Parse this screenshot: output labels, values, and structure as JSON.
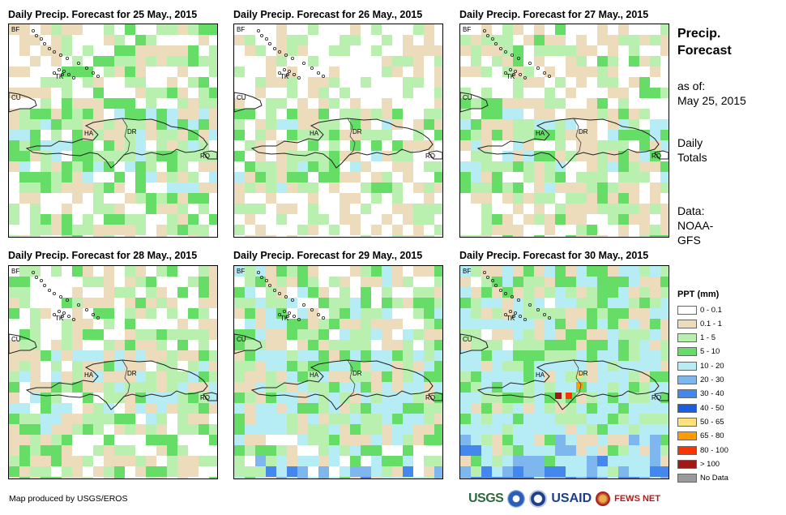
{
  "panels": [
    {
      "title": "Daily Precip. Forecast for 25 May., 2015",
      "seed": 25,
      "bias": 0.0,
      "south_wet": 0.0
    },
    {
      "title": "Daily Precip. Forecast for 26 May., 2015",
      "seed": 26,
      "bias": -0.15,
      "south_wet": 0.0
    },
    {
      "title": "Daily Precip. Forecast for 27 May., 2015",
      "seed": 27,
      "bias": -0.05,
      "south_wet": 0.1
    },
    {
      "title": "Daily Precip. Forecast for 28 May., 2015",
      "seed": 28,
      "bias": 0.0,
      "south_wet": 0.1
    },
    {
      "title": "Daily Precip. Forecast for 29 May., 2015",
      "seed": 29,
      "bias": 0.15,
      "south_wet": 0.55
    },
    {
      "title": "Daily Precip. Forecast for 30 May., 2015",
      "seed": 30,
      "bias": 0.3,
      "south_wet": 1.0
    }
  ],
  "map_labels": {
    "bf": "BF",
    "tk": "TK",
    "cu": "CU",
    "ha": "HA",
    "dr": "DR",
    "rq": "RQ"
  },
  "sidebar": {
    "title_line1": "Precip.",
    "title_line2": "Forecast",
    "asof_label": "as of:",
    "asof_date": "May 25, 2015",
    "totals_line1": "Daily",
    "totals_line2": "Totals",
    "data_line1": "Data:",
    "data_line2": "NOAA-",
    "data_line3": "GFS"
  },
  "legend": {
    "title": "PPT (mm)",
    "items": [
      {
        "label": "0 - 0.1",
        "color": "#ffffff"
      },
      {
        "label": "0.1 - 1",
        "color": "#ecdcbc"
      },
      {
        "label": "1 - 5",
        "color": "#b9f0b0"
      },
      {
        "label": "5 - 10",
        "color": "#66dd66"
      },
      {
        "label": "10 - 20",
        "color": "#b6ecf4"
      },
      {
        "label": "20 - 30",
        "color": "#7eb6ee"
      },
      {
        "label": "30 - 40",
        "color": "#4488ee"
      },
      {
        "label": "40 - 50",
        "color": "#1a5ee0"
      },
      {
        "label": "50 - 65",
        "color": "#ffe07a"
      },
      {
        "label": "65 - 80",
        "color": "#ff9a00"
      },
      {
        "label": "80 - 100",
        "color": "#ff3300"
      },
      {
        "label": "> 100",
        "color": "#a01818"
      },
      {
        "label": "No Data",
        "color": "#9a9a9a"
      }
    ]
  },
  "credit": "Map produced by USGS/EROS",
  "logos": {
    "usgs": "USGS",
    "usaid": "USAID",
    "fews": "FEWS NET"
  }
}
